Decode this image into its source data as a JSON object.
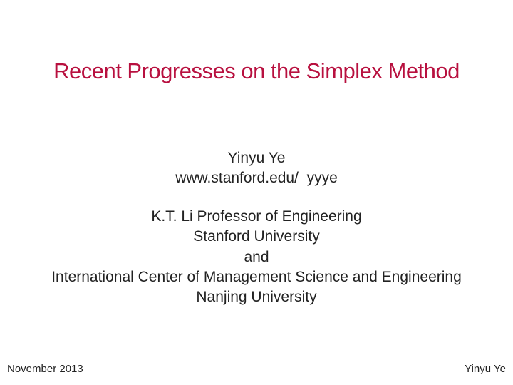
{
  "title": "Recent Progresses on the Simplex Method",
  "author": {
    "name": "Yinyu Ye",
    "url": "www.stanford.edu/  yyye"
  },
  "affiliation": {
    "line1": "K.T. Li Professor of Engineering",
    "line2": "Stanford University",
    "line3": "and",
    "line4": "International Center of Management Science and Engineering",
    "line5": "Nanjing University"
  },
  "footer": {
    "date": "November 2013",
    "name": "Yinyu Ye"
  },
  "colors": {
    "title_color": "#b8103f",
    "text_color": "#222222",
    "background_color": "#ffffff"
  },
  "typography": {
    "title_fontsize": 31,
    "body_fontsize": 21,
    "footer_fontsize": 15
  }
}
